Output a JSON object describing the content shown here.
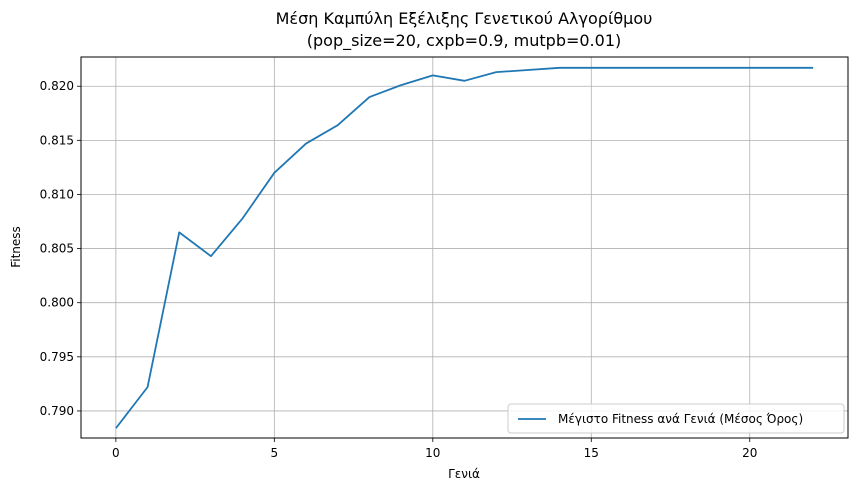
{
  "chart_data": {
    "type": "line",
    "title": "Μέση Καμπύλη Εξέλιξης Γενετικού Αλγορίθμου",
    "subtitle": "(pop_size=20, cxpb=0.9, mutpb=0.01)",
    "xlabel": "Γενιά",
    "ylabel": "Fitness",
    "xlim": [
      -1.1,
      23.1
    ],
    "ylim": [
      0.7875,
      0.8227
    ],
    "xticks": [
      0,
      5,
      10,
      15,
      20
    ],
    "yticks": [
      0.79,
      0.795,
      0.8,
      0.805,
      0.81,
      0.815,
      0.82
    ],
    "xtick_labels": [
      "0",
      "5",
      "10",
      "15",
      "20"
    ],
    "ytick_labels": [
      "0.790",
      "0.795",
      "0.800",
      "0.805",
      "0.810",
      "0.815",
      "0.820"
    ],
    "grid": true,
    "legend_position": "lower-right",
    "series": [
      {
        "name": "Μέγιστο Fitness ανά Γενιά (Μέσος Όρος)",
        "color": "#1f77b4",
        "x": [
          0,
          1,
          2,
          3,
          4,
          5,
          6,
          7,
          8,
          9,
          10,
          11,
          12,
          13,
          14,
          15,
          16,
          17,
          18,
          19,
          20,
          21,
          22
        ],
        "y": [
          0.7884,
          0.7922,
          0.8065,
          0.8043,
          0.8078,
          0.812,
          0.8147,
          0.8164,
          0.819,
          0.8201,
          0.821,
          0.8205,
          0.8213,
          0.8215,
          0.8217,
          0.8217,
          0.8217,
          0.8217,
          0.8217,
          0.8217,
          0.8217,
          0.8217,
          0.8217
        ]
      }
    ]
  }
}
